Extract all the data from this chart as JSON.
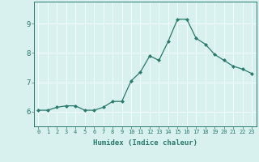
{
  "x": [
    0,
    1,
    2,
    3,
    4,
    5,
    6,
    7,
    8,
    9,
    10,
    11,
    12,
    13,
    14,
    15,
    16,
    17,
    18,
    19,
    20,
    21,
    22,
    23
  ],
  "y": [
    6.05,
    6.05,
    6.15,
    6.2,
    6.2,
    6.05,
    6.05,
    6.15,
    6.35,
    6.35,
    7.05,
    7.35,
    7.9,
    7.75,
    8.4,
    9.15,
    9.15,
    8.5,
    8.3,
    7.95,
    7.75,
    7.55,
    7.45,
    7.3
  ],
  "line_color": "#2a7a6e",
  "marker": "D",
  "markersize": 2.0,
  "linewidth": 0.9,
  "xlabel": "Humidex (Indice chaleur)",
  "xlim": [
    -0.5,
    23.5
  ],
  "ylim": [
    5.5,
    9.75
  ],
  "yticks": [
    6,
    7,
    8,
    9
  ],
  "xticks": [
    0,
    1,
    2,
    3,
    4,
    5,
    6,
    7,
    8,
    9,
    10,
    11,
    12,
    13,
    14,
    15,
    16,
    17,
    18,
    19,
    20,
    21,
    22,
    23
  ],
  "xtick_labels": [
    "0",
    "1",
    "2",
    "3",
    "4",
    "5",
    "6",
    "7",
    "8",
    "9",
    "10",
    "11",
    "12",
    "13",
    "14",
    "15",
    "16",
    "17",
    "18",
    "19",
    "20",
    "21",
    "22",
    "23"
  ],
  "bg_color": "#d8f0ee",
  "grid_color": "#f5ffff",
  "line_solid": true,
  "tick_color": "#2a7a6e",
  "label_color": "#2a7a6e",
  "spine_color": "#2a7a6e"
}
